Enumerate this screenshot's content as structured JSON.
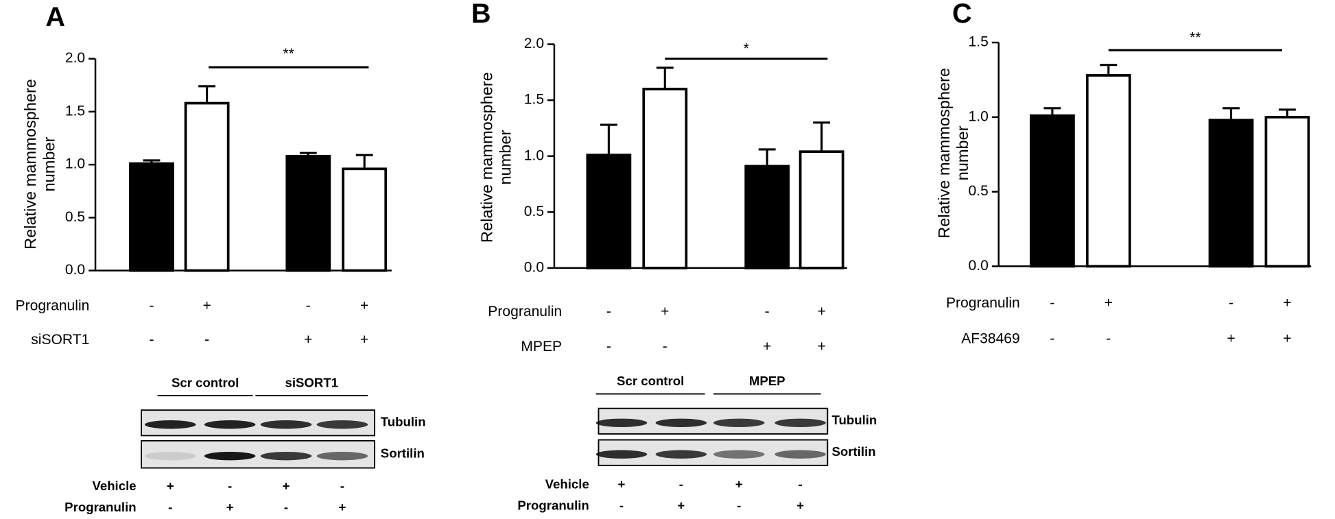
{
  "chart_data": [
    {
      "type": "bar",
      "panel": "A",
      "ylabel": [
        "Relative mammosphere",
        "number"
      ],
      "categories": [
        null,
        null,
        null,
        null
      ],
      "values": [
        1.01,
        1.58,
        1.08,
        0.96
      ],
      "errors": [
        0.03,
        0.16,
        0.03,
        0.13
      ],
      "colors": [
        "#000000",
        "#ffffff",
        "#000000",
        "#ffffff"
      ],
      "ylim": [
        0,
        2
      ],
      "yticks": [
        {
          "value": 0,
          "label": "0.0"
        },
        0.5,
        {
          "value": 1,
          "label": "1.0"
        },
        1.5,
        {
          "value": 2,
          "label": "2.0"
        }
      ],
      "significance": "**",
      "conditions": [
        {
          "label": "Progranulin",
          "signs": [
            "-",
            "+",
            "-",
            "+"
          ]
        },
        {
          "label": "siSORT1",
          "signs": [
            "-",
            "-",
            "+",
            "+"
          ]
        }
      ],
      "blot": {
        "groups": [
          "Scr control",
          "siSORT1"
        ],
        "bands": [
          "Tubulin",
          "Sortilin"
        ],
        "rows": [
          {
            "label": "Vehicle",
            "signs": [
              "+",
              "-",
              "+",
              "-"
            ]
          },
          {
            "label": "Progranulin",
            "signs": [
              "-",
              "+",
              "-",
              "+"
            ]
          }
        ]
      }
    },
    {
      "type": "bar",
      "panel": "B",
      "ylabel": [
        "Relative mammosphere",
        "number"
      ],
      "categories": [
        null,
        null,
        null,
        null
      ],
      "values": [
        1.01,
        1.6,
        0.91,
        1.04
      ],
      "errors": [
        0.27,
        0.19,
        0.15,
        0.26
      ],
      "colors": [
        "#000000",
        "#ffffff",
        "#000000",
        "#ffffff"
      ],
      "ylim": [
        0,
        2
      ],
      "yticks": [
        {
          "value": 0,
          "label": "0.0"
        },
        0.5,
        {
          "value": 1,
          "label": "1.0"
        },
        1.5,
        {
          "value": 2,
          "label": "2.0"
        }
      ],
      "significance": "*",
      "conditions": [
        {
          "label": "Progranulin",
          "signs": [
            "-",
            "+",
            "-",
            "+"
          ]
        },
        {
          "label": "MPEP",
          "signs": [
            "-",
            "-",
            "+",
            "+"
          ]
        }
      ],
      "blot": {
        "groups": [
          "Scr control",
          "MPEP"
        ],
        "bands": [
          "Tubulin",
          "Sortilin"
        ],
        "rows": [
          {
            "label": "Vehicle",
            "signs": [
              "+",
              "-",
              "+",
              "-"
            ]
          },
          {
            "label": "Progranulin",
            "signs": [
              "-",
              "+",
              "-",
              "+"
            ]
          }
        ]
      }
    },
    {
      "type": "bar",
      "panel": "C",
      "ylabel": [
        "Relative mammosphere",
        "number"
      ],
      "categories": [
        null,
        null,
        null,
        null
      ],
      "values": [
        1.01,
        1.28,
        0.98,
        1.0
      ],
      "errors": [
        0.05,
        0.07,
        0.08,
        0.05
      ],
      "colors": [
        "#000000",
        "#ffffff",
        "#000000",
        "#ffffff"
      ],
      "ylim": [
        0,
        1.5
      ],
      "yticks": [
        {
          "value": 0,
          "label": "0.0"
        },
        0.5,
        {
          "value": 1,
          "label": "1.0"
        },
        1.5
      ],
      "significance": "**",
      "conditions": [
        {
          "label": "Progranulin",
          "signs": [
            "-",
            "+",
            "-",
            "+"
          ]
        },
        {
          "label": "AF38469",
          "signs": [
            "-",
            "-",
            "+",
            "+"
          ]
        }
      ]
    }
  ]
}
